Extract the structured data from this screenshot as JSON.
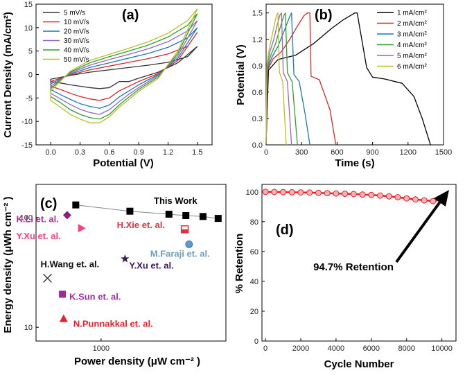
{
  "chart_data": [
    {
      "id": "a",
      "type": "line",
      "panel_label": "(a)",
      "title": "",
      "xlabel": "Potential (V)",
      "ylabel": "Current Density (mA/cm²)",
      "xlim": [
        -0.15,
        1.65
      ],
      "ylim": [
        -15,
        15
      ],
      "xticks": [
        0.0,
        0.3,
        0.6,
        0.9,
        1.2,
        1.5
      ],
      "yticks": [
        -15,
        -10,
        -5,
        0,
        5,
        10,
        15
      ],
      "xtick_labels": [
        "0.0",
        "0.3",
        "0.6",
        "0.9",
        "1.2",
        "1.5"
      ],
      "ytick_labels": [
        "-15",
        "-10",
        "-5",
        "0",
        "5",
        "10",
        "15"
      ],
      "legend_position": "top-left",
      "series": [
        {
          "name": "5 mV/s",
          "color": "#333333",
          "lower_x": [
            1.5,
            1.3,
            1.1,
            0.9,
            0.8,
            0.7,
            0.6,
            0.5,
            0.4,
            0.3,
            0.2,
            0.1,
            0.0
          ],
          "lower_y": [
            6,
            2.5,
            0.5,
            -0.8,
            -1.5,
            -1.5,
            -2.8,
            -3.0,
            -2.8,
            -2.5,
            -2.2,
            -1.8,
            -1.5
          ],
          "upper_x": [
            0.0,
            0.2,
            0.4,
            0.6,
            0.8,
            1.0,
            1.2,
            1.4,
            1.5
          ],
          "upper_y": [
            -1.0,
            -0.2,
            0.5,
            1.0,
            1.5,
            2.0,
            2.6,
            3.8,
            6
          ]
        },
        {
          "name": "10 mV/s",
          "color": "#d62728",
          "lower_x": [
            1.5,
            1.3,
            1.1,
            0.9,
            0.8,
            0.7,
            0.6,
            0.5,
            0.4,
            0.3,
            0.2,
            0.1,
            0.0
          ],
          "lower_y": [
            9,
            3,
            0.2,
            -1.5,
            -2.5,
            -3.5,
            -5.0,
            -5.5,
            -5.2,
            -4.7,
            -4.0,
            -3.2,
            -2.5
          ],
          "upper_x": [
            0.0,
            0.2,
            0.4,
            0.6,
            0.8,
            1.0,
            1.2,
            1.4,
            1.5
          ],
          "upper_y": [
            -1.5,
            -0.1,
            1.0,
            1.8,
            2.6,
            3.4,
            4.4,
            6.0,
            9
          ]
        },
        {
          "name": "20 mV/s",
          "color": "#1f77b4",
          "lower_x": [
            1.5,
            1.3,
            1.1,
            0.9,
            0.8,
            0.7,
            0.6,
            0.5,
            0.4,
            0.3,
            0.2,
            0.1,
            0.0
          ],
          "lower_y": [
            10,
            3.5,
            0,
            -2.2,
            -3.5,
            -4.8,
            -6.5,
            -7.2,
            -6.8,
            -6.2,
            -5.3,
            -4.3,
            -3.2
          ],
          "upper_x": [
            0.0,
            0.2,
            0.4,
            0.6,
            0.8,
            1.0,
            1.2,
            1.4,
            1.5
          ],
          "upper_y": [
            -2.0,
            0.1,
            1.5,
            2.5,
            3.5,
            4.5,
            5.8,
            7.8,
            10
          ]
        },
        {
          "name": "30 mV/s",
          "color": "#9467bd",
          "lower_x": [
            1.5,
            1.3,
            1.1,
            0.9,
            0.8,
            0.7,
            0.6,
            0.5,
            0.4,
            0.3,
            0.2,
            0.1,
            0.0
          ],
          "lower_y": [
            11.5,
            4,
            -0.2,
            -2.8,
            -4.2,
            -5.8,
            -7.5,
            -8.5,
            -8.1,
            -7.4,
            -6.4,
            -5.2,
            -4.0
          ],
          "upper_x": [
            0.0,
            0.2,
            0.4,
            0.6,
            0.8,
            1.0,
            1.2,
            1.4,
            1.5
          ],
          "upper_y": [
            -2.5,
            0.3,
            2.0,
            3.2,
            4.3,
            5.5,
            7.0,
            9.3,
            11.5
          ]
        },
        {
          "name": "40 mV/s",
          "color": "#2ca02c",
          "lower_x": [
            1.5,
            1.3,
            1.1,
            0.9,
            0.8,
            0.7,
            0.6,
            0.5,
            0.4,
            0.3,
            0.2,
            0.1,
            0.0
          ],
          "lower_y": [
            13,
            4.5,
            -0.5,
            -3.2,
            -4.8,
            -6.5,
            -8.5,
            -9.5,
            -9.2,
            -8.5,
            -7.5,
            -6.0,
            -4.7
          ],
          "upper_x": [
            0.0,
            0.2,
            0.4,
            0.6,
            0.8,
            1.0,
            1.2,
            1.4,
            1.5
          ],
          "upper_y": [
            -3.0,
            0.5,
            2.5,
            3.8,
            5.0,
            6.3,
            8.0,
            10.5,
            13
          ]
        },
        {
          "name": "50 mV/s",
          "color": "#bcbd22",
          "lower_x": [
            1.5,
            1.3,
            1.1,
            0.9,
            0.8,
            0.7,
            0.6,
            0.5,
            0.4,
            0.3,
            0.2,
            0.1,
            0.0
          ],
          "lower_y": [
            14,
            5,
            -0.8,
            -3.6,
            -5.3,
            -7.0,
            -9.0,
            -10.3,
            -10.3,
            -9.5,
            -8.5,
            -7.0,
            -5.5
          ],
          "upper_x": [
            0.0,
            0.2,
            0.4,
            0.6,
            0.8,
            1.0,
            1.2,
            1.4,
            1.5
          ],
          "upper_y": [
            -3.5,
            0.7,
            3.0,
            4.3,
            5.6,
            7.0,
            8.8,
            11.5,
            14
          ]
        }
      ]
    },
    {
      "id": "b",
      "type": "line",
      "panel_label": "(b)",
      "title": "",
      "xlabel": "Time (s)",
      "ylabel": "Potential (V)",
      "xlim": [
        0,
        1500
      ],
      "ylim": [
        0,
        1.6
      ],
      "xticks": [
        0,
        300,
        600,
        900,
        1200,
        1500
      ],
      "yticks": [
        0.0,
        0.3,
        0.6,
        0.9,
        1.2,
        1.5
      ],
      "xtick_labels": [
        "0",
        "300",
        "600",
        "900",
        "1200",
        "1500"
      ],
      "ytick_labels": [
        "0.0",
        "0.3",
        "0.6",
        "0.9",
        "1.2",
        "1.5"
      ],
      "legend_position": "top-right",
      "series": [
        {
          "name": "1 mA/cm²",
          "color": "#000000",
          "x": [
            0,
            20,
            100,
            250,
            400,
            550,
            650,
            750,
            770,
            850,
            900,
            1000,
            1150,
            1250,
            1320,
            1390
          ],
          "y": [
            0.02,
            0.85,
            0.97,
            1.02,
            1.15,
            1.32,
            1.42,
            1.5,
            1.5,
            0.88,
            0.77,
            0.75,
            0.7,
            0.55,
            0.3,
            0.0
          ]
        },
        {
          "name": "2 mA/cm²",
          "color": "#d62728",
          "x": [
            0,
            12,
            60,
            130,
            200,
            260,
            320,
            350,
            370,
            380,
            450,
            540,
            590
          ],
          "y": [
            0.02,
            0.85,
            0.98,
            1.06,
            1.2,
            1.34,
            1.47,
            1.5,
            1.5,
            0.78,
            0.74,
            0.4,
            0.0
          ]
        },
        {
          "name": "3 mA/cm²",
          "color": "#1f77b4",
          "x": [
            0,
            10,
            50,
            100,
            160,
            200,
            215,
            235,
            280,
            330,
            370
          ],
          "y": [
            0.02,
            0.86,
            1.0,
            1.12,
            1.32,
            1.46,
            1.5,
            0.8,
            0.72,
            0.35,
            0.0
          ]
        },
        {
          "name": "4 mA/cm²",
          "color": "#2ca02c",
          "x": [
            0,
            8,
            40,
            80,
            120,
            150,
            163,
            180,
            220,
            265
          ],
          "y": [
            0.02,
            0.87,
            1.02,
            1.15,
            1.34,
            1.47,
            1.5,
            0.82,
            0.72,
            0.0
          ]
        },
        {
          "name": "5 mA/cm²",
          "color": "#9467bd",
          "x": [
            0,
            7,
            30,
            65,
            95,
            118,
            130,
            145,
            180,
            215
          ],
          "y": [
            0.02,
            0.88,
            1.05,
            1.2,
            1.37,
            1.48,
            1.5,
            0.82,
            0.72,
            0.0
          ]
        },
        {
          "name": "6 mA/cm²",
          "color": "#bcbd22",
          "x": [
            0,
            6,
            25,
            50,
            75,
            90,
            100,
            112,
            140,
            170
          ],
          "y": [
            0.02,
            0.9,
            1.08,
            1.24,
            1.4,
            1.48,
            1.5,
            0.83,
            0.72,
            0.0
          ]
        }
      ]
    },
    {
      "id": "c",
      "type": "scatter",
      "panel_label": "(c)",
      "title": "",
      "xlabel": "Power density (μW cm⁻² )",
      "ylabel": "Energy density (μWh cm⁻² )",
      "xscale": "log",
      "yscale": "log",
      "xlim": [
        400,
        5800
      ],
      "ylim": [
        7.5,
        200
      ],
      "yticks": [
        10,
        100
      ],
      "ytick_labels": [
        "10",
        "100"
      ],
      "xticks": [
        1000
      ],
      "xtick_labels": [
        "1000"
      ],
      "this_work_label": "This Work",
      "this_work": {
        "x": [
          700,
          1500,
          2600,
          3300,
          4200,
          5200
        ],
        "y": [
          130,
          114,
          107,
          104,
          102,
          98
        ],
        "color": "#000000"
      },
      "references": [
        {
          "name": "K.Li et. al.",
          "x": 620,
          "y": 105,
          "marker": "diamond",
          "color": "#8b1a8b",
          "label_color": "#b03090"
        },
        {
          "name": "H.Xie et. al.",
          "x": 3250,
          "y": 78,
          "marker": "half-square",
          "color": "#e03040",
          "label_color": "#e03040"
        },
        {
          "name": "Y.Xu et. al.",
          "x": 760,
          "y": 80,
          "marker": "triangle-right",
          "color": "#ff3d7a",
          "label_color": "#ff3d7a"
        },
        {
          "name": "M.Faraji et. al.",
          "x": 3450,
          "y": 57,
          "marker": "sphere",
          "color": "#5a9ad0",
          "label_color": "#6a9ec2"
        },
        {
          "name": "Y.Xu et. al.",
          "x": 1400,
          "y": 42,
          "marker": "star",
          "color": "#3a1a5a",
          "label_color": "#3a1a5a"
        },
        {
          "name": "H.Wang et. al.",
          "x": 470,
          "y": 28,
          "marker": "x",
          "color": "#222222",
          "label_color": "#111111"
        },
        {
          "name": "K.Sun et. al.",
          "x": 580,
          "y": 20,
          "marker": "square",
          "color": "#9b2a9b",
          "label_color": "#a030a0"
        },
        {
          "name": "N.Punnakkal et. al.",
          "x": 590,
          "y": 12,
          "marker": "triangle",
          "color": "#e8202a",
          "label_color": "#e8202a"
        }
      ]
    },
    {
      "id": "d",
      "type": "scatter",
      "panel_label": "(d)",
      "title": "",
      "xlabel": "Cycle Number",
      "ylabel": "% Retention",
      "xlim": [
        -200,
        10800
      ],
      "ylim": [
        0,
        105
      ],
      "xticks": [
        0,
        2000,
        4000,
        6000,
        8000,
        10000
      ],
      "yticks": [
        0,
        20,
        40,
        60,
        80,
        100
      ],
      "xtick_labels": [
        "0",
        "2000",
        "4000",
        "6000",
        "8000",
        "10000"
      ],
      "ytick_labels": [
        "0",
        "20",
        "40",
        "60",
        "80",
        "100"
      ],
      "annotation": "94.7% Retention",
      "series": [
        {
          "name": "Retention",
          "color": "#e8202a",
          "x": [
            0,
            500,
            1000,
            1500,
            2000,
            2500,
            3000,
            3500,
            4000,
            4500,
            5000,
            5500,
            6000,
            6500,
            7000,
            7500,
            8000,
            8500,
            9000,
            9500,
            10000
          ],
          "y": [
            100,
            99.9,
            99.8,
            99.7,
            99.6,
            99.5,
            99.3,
            99.1,
            98.9,
            98.7,
            98.5,
            98.2,
            97.9,
            97.5,
            97.0,
            96.4,
            95.6,
            94.9,
            94.3,
            93.8,
            94.7
          ]
        }
      ]
    }
  ]
}
